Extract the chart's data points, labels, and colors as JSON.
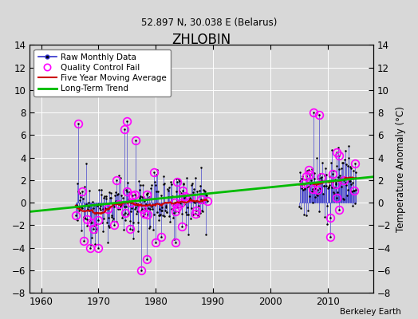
{
  "title": "ZHLOBIN",
  "subtitle": "52.897 N, 30.038 E (Belarus)",
  "ylabel": "Temperature Anomaly (°C)",
  "credit": "Berkeley Earth",
  "xlim": [
    1958,
    2018
  ],
  "ylim": [
    -8,
    14
  ],
  "yticks": [
    -8,
    -6,
    -4,
    -2,
    0,
    2,
    4,
    6,
    8,
    10,
    12,
    14
  ],
  "xticks": [
    1960,
    1970,
    1980,
    1990,
    2000,
    2010
  ],
  "bg_color": "#d8d8d8",
  "plot_bg_color": "#d8d8d8",
  "raw_color": "#3030cc",
  "qc_color": "#ff00ff",
  "moving_avg_color": "#cc0000",
  "trend_color": "#00bb00",
  "seed": 12345
}
